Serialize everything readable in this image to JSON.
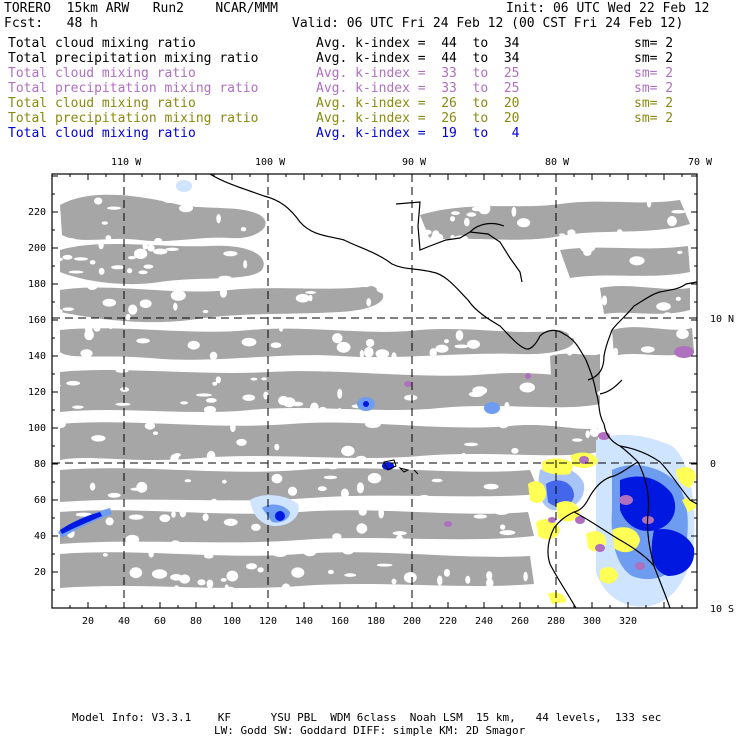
{
  "header": {
    "model": "TORERO  15km ARW   Run2    NCAR/MMM",
    "init": "Init: 06 UTC Wed 22 Feb 12",
    "fcst": "Fcst:   48 h",
    "valid": "Valid: 06 UTC Fri 24 Feb 12 (00 CST Fri 24 Feb 12)"
  },
  "legend": [
    {
      "field": "Total cloud mixing ratio",
      "kindex": "Avg. k-index =  44  to  34",
      "sm": "sm= 2",
      "color": "#000000"
    },
    {
      "field": "Total precipitation mixing ratio",
      "kindex": "Avg. k-index =  44  to  34",
      "sm": "sm= 2",
      "color": "#000000"
    },
    {
      "field": "Total cloud mixing ratio",
      "kindex": "Avg. k-index =  33  to  25",
      "sm": "sm= 2",
      "color": "#b070c0"
    },
    {
      "field": "Total precipitation mixing ratio",
      "kindex": "Avg. k-index =  33  to  25",
      "sm": "sm= 2",
      "color": "#b070c0"
    },
    {
      "field": "Total cloud mixing ratio",
      "kindex": "Avg. k-index =  26  to  20",
      "sm": "sm= 2",
      "color": "#8a8a10"
    },
    {
      "field": "Total precipitation mixing ratio",
      "kindex": "Avg. k-index =  26  to  20",
      "sm": "sm= 2",
      "color": "#8a8a10"
    },
    {
      "field": "Total cloud mixing ratio",
      "kindex": "Avg. k-index =  19  to   4",
      "sm": "",
      "color": "#0000dd"
    }
  ],
  "map": {
    "lon_labels": [
      "110 W",
      "100 W",
      "90 W",
      "80 W",
      "70 W"
    ],
    "lat_labels": [
      "10 N",
      "0",
      "10 S"
    ],
    "x_ticks": [
      "20",
      "40",
      "60",
      "80",
      "100",
      "120",
      "140",
      "160",
      "180",
      "200",
      "220",
      "240",
      "260",
      "280",
      "300",
      "320"
    ],
    "y_ticks": [
      "20",
      "40",
      "60",
      "80",
      "100",
      "120",
      "140",
      "160",
      "180",
      "200",
      "220"
    ],
    "colors": {
      "cloud_gray": "#a6a6a6",
      "light_blue": "#cfe4ff",
      "mid_blue": "#6e9cf0",
      "deep_blue": "#0018e0",
      "yellow": "#ffff55",
      "purple": "#b070c0"
    }
  },
  "footer": {
    "line1": "Model Info: V3.3.1    KF      YSU PBL  WDM 6class  Noah LSM  15 km,   44 levels,  133 sec",
    "line2": "LW: Godd SW: Goddard DIFF: simple KM: 2D Smagor"
  }
}
